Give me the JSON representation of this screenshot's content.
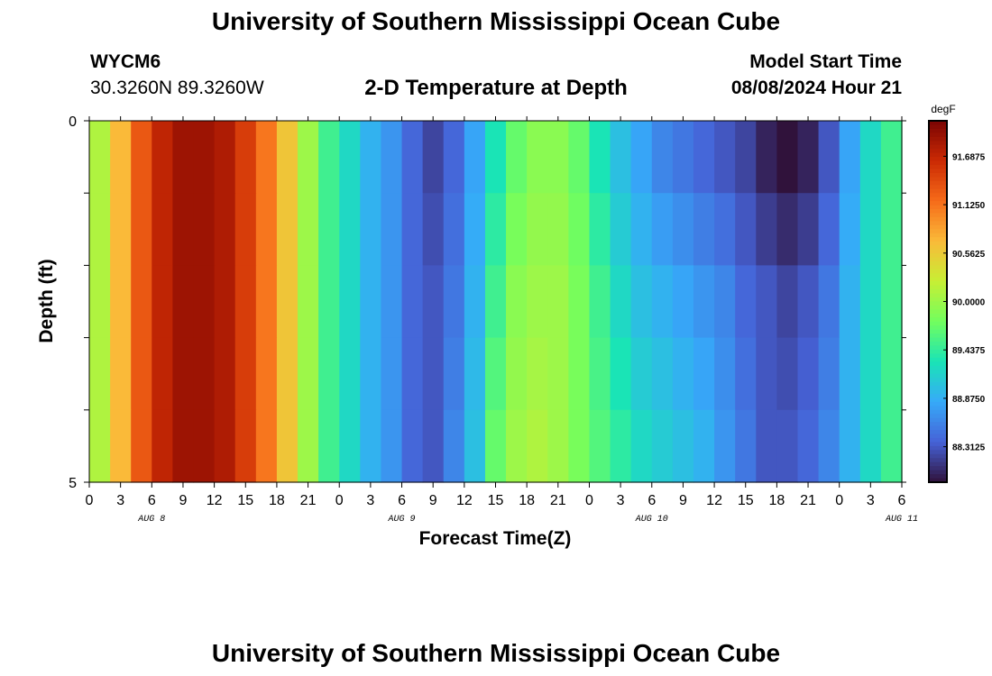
{
  "header": {
    "title": "University of Southern Mississippi Ocean Cube",
    "station": "WYCM6",
    "coords": "30.3260N  89.3260W",
    "model_label": "Model Start Time",
    "model_time": "08/08/2024 Hour 21",
    "footer_title": "University of Southern Mississippi Ocean Cube"
  },
  "chart_data": {
    "type": "heatmap",
    "title": "2-D Temperature at Depth",
    "xlabel": "Forecast Time(Z)",
    "ylabel": "Depth (ft)",
    "colorbar_unit": "degF",
    "x_tick_labels": [
      "0",
      "3",
      "6",
      "9",
      "12",
      "15",
      "18",
      "21",
      "0",
      "3",
      "6",
      "9",
      "12",
      "15",
      "18",
      "21",
      "0",
      "3",
      "6",
      "9",
      "12",
      "15",
      "18",
      "21",
      "0",
      "3",
      "6"
    ],
    "date_labels": [
      "AUG 8",
      "AUG 9",
      "AUG 10",
      "AUG 11"
    ],
    "date_label_hours": [
      6,
      30,
      54,
      78
    ],
    "y_tick_labels": [
      "0",
      "5"
    ],
    "depth_range_ft": [
      0,
      5
    ],
    "hour_range": [
      0,
      78
    ],
    "colorbar_ticks": [
      "91.6875",
      "91.1250",
      "90.5625",
      "90.0000",
      "89.4375",
      "88.8750",
      "88.3125"
    ],
    "colorbar_tick_values": [
      91.6875,
      91.125,
      90.5625,
      90.0,
      89.4375,
      88.875,
      88.3125
    ],
    "color_range_degF": [
      87.9,
      92.1
    ],
    "colormap": [
      "#30123b",
      "#4662d7",
      "#36aaf9",
      "#1ae4b6",
      "#72fe5e",
      "#c7ef34",
      "#faba39",
      "#f66b19",
      "#cb2a04",
      "#7a0403"
    ],
    "depth_levels_ft": [
      0.25,
      0.75,
      1.5,
      2.5,
      3.5,
      4.25,
      4.75
    ],
    "profile_hours": [
      0,
      3,
      6,
      9,
      12,
      15,
      18,
      21,
      24,
      27,
      30,
      33,
      36,
      39,
      42,
      45,
      48,
      51,
      54,
      57,
      60,
      63,
      66,
      69,
      72,
      75,
      78
    ],
    "temperature_profiles": [
      {
        "hours": [
          0,
          2,
          4,
          6,
          8,
          10,
          12,
          14,
          16,
          18,
          20,
          22,
          24,
          26,
          28,
          30,
          32,
          34,
          36,
          38,
          40,
          42,
          44,
          46,
          48,
          50,
          52,
          54,
          56,
          58,
          60,
          62,
          64,
          66,
          68,
          70,
          72,
          74,
          76,
          78
        ],
        "depth_0_25": [
          90.1,
          90.7,
          91.3,
          91.7,
          91.9,
          91.9,
          91.8,
          91.5,
          91.1,
          90.6,
          90.0,
          89.5,
          89.2,
          88.9,
          88.7,
          88.4,
          88.2,
          88.4,
          88.8,
          89.3,
          89.7,
          89.9,
          89.9,
          89.7,
          89.3,
          89.0,
          88.8,
          88.6,
          88.5,
          88.4,
          88.3,
          88.2,
          88.0,
          87.9,
          88.0,
          88.3,
          88.8,
          89.2,
          89.5,
          89.6
        ],
        "depth_2_5": [
          90.1,
          90.7,
          91.3,
          91.7,
          91.9,
          91.9,
          91.8,
          91.5,
          91.1,
          90.6,
          90.0,
          89.5,
          89.2,
          88.9,
          88.7,
          88.4,
          88.3,
          88.5,
          88.9,
          89.5,
          89.9,
          90.0,
          90.0,
          89.8,
          89.5,
          89.2,
          89.0,
          88.9,
          88.8,
          88.7,
          88.6,
          88.4,
          88.3,
          88.2,
          88.3,
          88.5,
          88.9,
          89.2,
          89.5,
          89.6
        ],
        "depth_4_75": [
          90.1,
          90.7,
          91.3,
          91.7,
          91.9,
          91.9,
          91.8,
          91.5,
          91.1,
          90.6,
          90.0,
          89.5,
          89.2,
          88.9,
          88.7,
          88.4,
          88.3,
          88.6,
          89.0,
          89.7,
          90.0,
          90.1,
          90.0,
          89.8,
          89.6,
          89.4,
          89.2,
          89.1,
          89.0,
          88.9,
          88.7,
          88.5,
          88.3,
          88.3,
          88.4,
          88.6,
          88.9,
          89.2,
          89.5,
          89.6
        ]
      }
    ]
  }
}
